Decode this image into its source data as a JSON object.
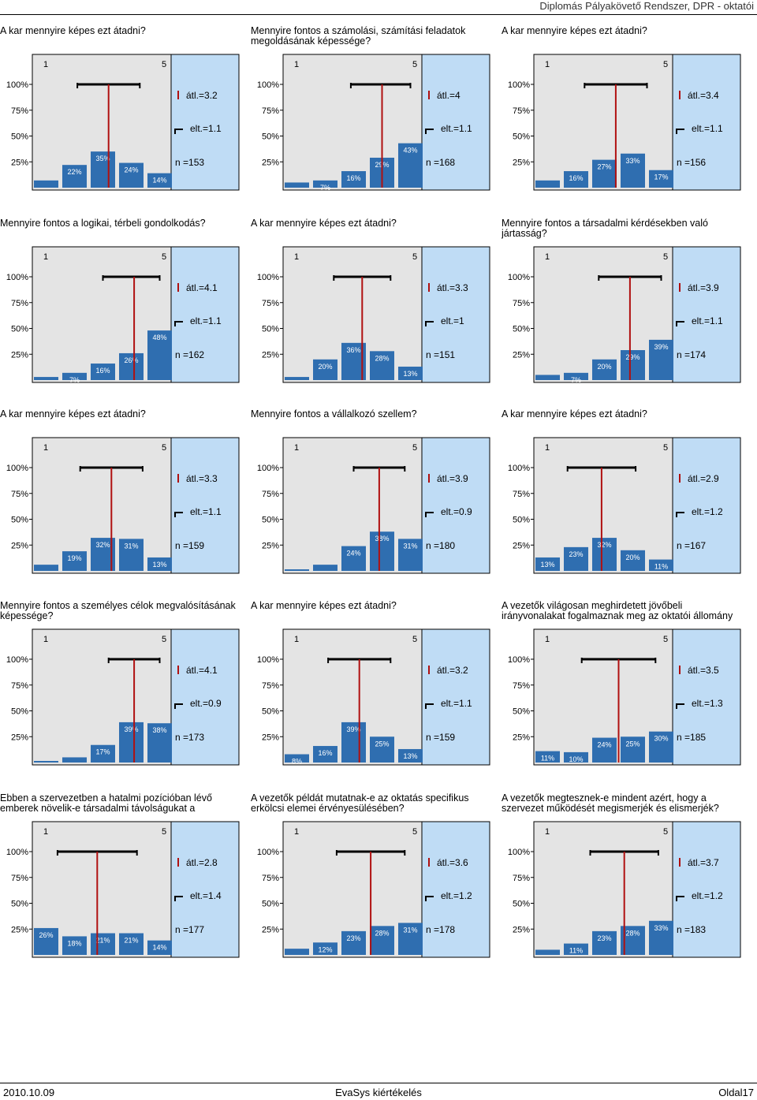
{
  "header": {
    "title": "Diplomás Pályakövető Rendszer, DPR - oktatói"
  },
  "scale": {
    "min_label": "1",
    "max_label": "5",
    "y_ticks": [
      "100%",
      "75%",
      "50%",
      "25%"
    ]
  },
  "chart_data": [
    {
      "type": "bar",
      "question": "A kar mennyire képes ezt átadni?",
      "categories": [
        "1",
        "2",
        "3",
        "4",
        "5"
      ],
      "values": [
        7,
        22,
        35,
        24,
        14
      ],
      "labels": [
        "",
        "22%",
        "35%",
        "24%",
        "14%"
      ],
      "mean": 3.2,
      "mean_label": "átl.=3.2",
      "sd": 1.1,
      "sd_label": "elt.=1.1",
      "n": 153,
      "n_label": "n =153"
    },
    {
      "type": "bar",
      "question": "Mennyire fontos a számolási, számítási feladatok megoldásának képessége?",
      "categories": [
        "1",
        "2",
        "3",
        "4",
        "5"
      ],
      "values": [
        5,
        7,
        16,
        29,
        43
      ],
      "labels": [
        "",
        "7%",
        "16%",
        "29%",
        "43%"
      ],
      "mean": 4,
      "mean_label": "átl.=4",
      "sd": 1.1,
      "sd_label": "elt.=1.1",
      "n": 168,
      "n_label": "n =168"
    },
    {
      "type": "bar",
      "question": "A kar mennyire képes ezt átadni?",
      "categories": [
        "1",
        "2",
        "3",
        "4",
        "5"
      ],
      "values": [
        7,
        16,
        27,
        33,
        17
      ],
      "labels": [
        "",
        "16%",
        "27%",
        "33%",
        "17%"
      ],
      "mean": 3.4,
      "mean_label": "átl.=3.4",
      "sd": 1.1,
      "sd_label": "elt.=1.1",
      "n": 156,
      "n_label": "n =156"
    },
    {
      "type": "bar",
      "question": "Mennyire fontos a logikai, térbeli gondolkodás?",
      "categories": [
        "1",
        "2",
        "3",
        "4",
        "5"
      ],
      "values": [
        3,
        7,
        16,
        26,
        48
      ],
      "labels": [
        "",
        "7%",
        "16%",
        "26%",
        "48%"
      ],
      "mean": 4.1,
      "mean_label": "átl.=4.1",
      "sd": 1.1,
      "sd_label": "elt.=1.1",
      "n": 162,
      "n_label": "n =162"
    },
    {
      "type": "bar",
      "question": "A kar mennyire képes ezt átadni?",
      "categories": [
        "1",
        "2",
        "3",
        "4",
        "5"
      ],
      "values": [
        3,
        20,
        36,
        28,
        13
      ],
      "labels": [
        "",
        "20%",
        "36%",
        "28%",
        "13%"
      ],
      "mean": 3.3,
      "mean_label": "átl.=3.3",
      "sd": 1,
      "sd_label": "elt.=1",
      "n": 151,
      "n_label": "n =151"
    },
    {
      "type": "bar",
      "question": "Mennyire fontos a társadalmi kérdésekben való jártasság?",
      "categories": [
        "1",
        "2",
        "3",
        "4",
        "5"
      ],
      "values": [
        5,
        7,
        20,
        29,
        39
      ],
      "labels": [
        "",
        "7%",
        "20%",
        "29%",
        "39%"
      ],
      "mean": 3.9,
      "mean_label": "átl.=3.9",
      "sd": 1.1,
      "sd_label": "elt.=1.1",
      "n": 174,
      "n_label": "n =174"
    },
    {
      "type": "bar",
      "question": "A kar mennyire képes ezt átadni?",
      "categories": [
        "1",
        "2",
        "3",
        "4",
        "5"
      ],
      "values": [
        6,
        19,
        32,
        31,
        13
      ],
      "labels": [
        "",
        "19%",
        "32%",
        "31%",
        "13%"
      ],
      "mean": 3.3,
      "mean_label": "átl.=3.3",
      "sd": 1.1,
      "sd_label": "elt.=1.1",
      "n": 159,
      "n_label": "n =159"
    },
    {
      "type": "bar",
      "question": "Mennyire fontos a vállalkozó szellem?",
      "categories": [
        "1",
        "2",
        "3",
        "4",
        "5"
      ],
      "values": [
        1,
        6,
        24,
        38,
        31
      ],
      "labels": [
        "",
        "",
        "24%",
        "38%",
        "31%"
      ],
      "mean": 3.9,
      "mean_label": "átl.=3.9",
      "sd": 0.9,
      "sd_label": "elt.=0.9",
      "n": 180,
      "n_label": "n =180"
    },
    {
      "type": "bar",
      "question": "A kar mennyire képes ezt átadni?",
      "categories": [
        "1",
        "2",
        "3",
        "4",
        "5"
      ],
      "values": [
        13,
        23,
        32,
        20,
        11
      ],
      "labels": [
        "13%",
        "23%",
        "32%",
        "20%",
        "11%"
      ],
      "mean": 2.9,
      "mean_label": "átl.=2.9",
      "sd": 1.2,
      "sd_label": "elt.=1.2",
      "n": 167,
      "n_label": "n =167"
    },
    {
      "type": "bar",
      "question": "Mennyire fontos a személyes célok megvalósításának képessége?",
      "categories": [
        "1",
        "2",
        "3",
        "4",
        "5"
      ],
      "values": [
        1,
        5,
        17,
        39,
        38
      ],
      "labels": [
        "",
        "",
        "17%",
        "39%",
        "38%"
      ],
      "mean": 4.1,
      "mean_label": "átl.=4.1",
      "sd": 0.9,
      "sd_label": "elt.=0.9",
      "n": 173,
      "n_label": "n =173"
    },
    {
      "type": "bar",
      "question": "A kar mennyire képes ezt átadni?",
      "categories": [
        "1",
        "2",
        "3",
        "4",
        "5"
      ],
      "values": [
        8,
        16,
        39,
        25,
        13
      ],
      "labels": [
        "8%",
        "16%",
        "39%",
        "25%",
        "13%"
      ],
      "mean": 3.2,
      "mean_label": "átl.=3.2",
      "sd": 1.1,
      "sd_label": "elt.=1.1",
      "n": 159,
      "n_label": "n =159"
    },
    {
      "type": "bar",
      "question": "A vezetők világosan meghirdetett jövőbeli irányvonalakat fogalmaznak meg az oktatói állomány",
      "categories": [
        "1",
        "2",
        "3",
        "4",
        "5"
      ],
      "values": [
        11,
        10,
        24,
        25,
        30
      ],
      "labels": [
        "11%",
        "10%",
        "24%",
        "25%",
        "30%"
      ],
      "mean": 3.5,
      "mean_label": "átl.=3.5",
      "sd": 1.3,
      "sd_label": "elt.=1.3",
      "n": 185,
      "n_label": "n =185"
    },
    {
      "type": "bar",
      "question": "Ebben a szervezetben a hatalmi pozícióban lévő emberek növelik-e társadalmi távolságukat a",
      "categories": [
        "1",
        "2",
        "3",
        "4",
        "5"
      ],
      "values": [
        26,
        18,
        21,
        21,
        14
      ],
      "labels": [
        "26%",
        "18%",
        "21%",
        "21%",
        "14%"
      ],
      "mean": 2.8,
      "mean_label": "átl.=2.8",
      "sd": 1.4,
      "sd_label": "elt.=1.4",
      "n": 177,
      "n_label": "n =177"
    },
    {
      "type": "bar",
      "question": "A vezetők példát mutatnak-e az oktatás specifikus erkölcsi elemei érvényesülésében?",
      "categories": [
        "1",
        "2",
        "3",
        "4",
        "5"
      ],
      "values": [
        6,
        12,
        23,
        28,
        31
      ],
      "labels": [
        "",
        "12%",
        "23%",
        "28%",
        "31%"
      ],
      "mean": 3.6,
      "mean_label": "átl.=3.6",
      "sd": 1.2,
      "sd_label": "elt.=1.2",
      "n": 178,
      "n_label": "n =178"
    },
    {
      "type": "bar",
      "question": "A vezetők megtesznek-e mindent azért, hogy a szervezet működését megismerjék és elismerjék?",
      "categories": [
        "1",
        "2",
        "3",
        "4",
        "5"
      ],
      "values": [
        5,
        11,
        23,
        28,
        33
      ],
      "labels": [
        "",
        "11%",
        "23%",
        "28%",
        "33%"
      ],
      "mean": 3.7,
      "mean_label": "átl.=3.7",
      "sd": 1.2,
      "sd_label": "elt.=1.2",
      "n": 183,
      "n_label": "n =183"
    }
  ],
  "footer": {
    "date": "2010.10.09",
    "center": "EvaSys kiértékelés",
    "page": "Oldal17"
  },
  "colors": {
    "bar": "#2f6eb0",
    "panel": "#e4e4e4",
    "side": "#bfdcf5",
    "mean_line": "#b01010"
  }
}
